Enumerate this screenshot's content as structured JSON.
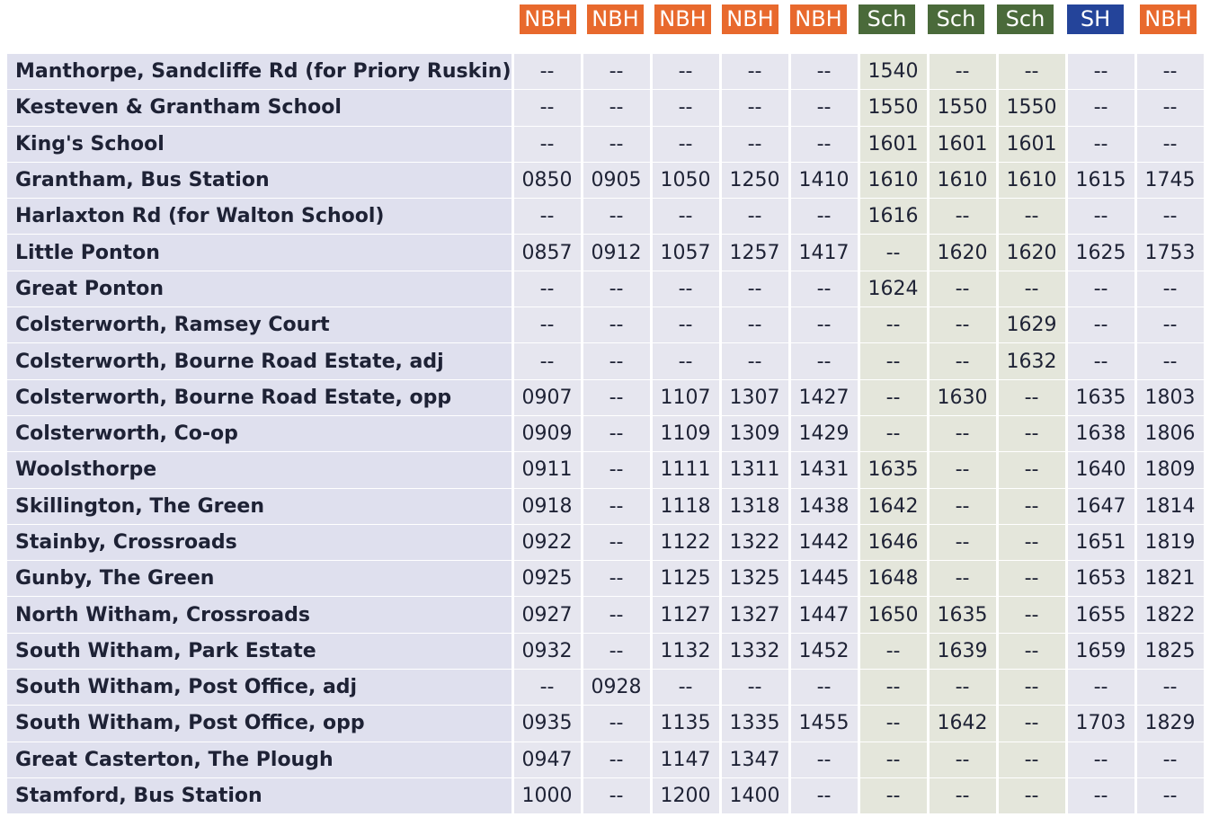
{
  "columns": [
    {
      "label": "NBH",
      "color": "#e8692d"
    },
    {
      "label": "NBH",
      "color": "#e8692d"
    },
    {
      "label": "NBH",
      "color": "#e8692d"
    },
    {
      "label": "NBH",
      "color": "#e8692d"
    },
    {
      "label": "NBH",
      "color": "#e8692d"
    },
    {
      "label": "Sch",
      "color": "#4a6a3a"
    },
    {
      "label": "Sch",
      "color": "#4a6a3a"
    },
    {
      "label": "Sch",
      "color": "#4a6a3a"
    },
    {
      "label": "SH",
      "color": "#24449a"
    },
    {
      "label": "NBH",
      "color": "#e8692d"
    }
  ],
  "rows": [
    {
      "stop": "Manthorpe, Sandcliffe Rd (for Priory Ruskin)",
      "times": [
        "--",
        "--",
        "--",
        "--",
        "--",
        "1540",
        "--",
        "--",
        "--",
        "--"
      ]
    },
    {
      "stop": "Kesteven & Grantham School",
      "times": [
        "--",
        "--",
        "--",
        "--",
        "--",
        "1550",
        "1550",
        "1550",
        "--",
        "--"
      ]
    },
    {
      "stop": "King's School",
      "times": [
        "--",
        "--",
        "--",
        "--",
        "--",
        "1601",
        "1601",
        "1601",
        "--",
        "--"
      ]
    },
    {
      "stop": "Grantham, Bus Station",
      "times": [
        "0850",
        "0905",
        "1050",
        "1250",
        "1410",
        "1610",
        "1610",
        "1610",
        "1615",
        "1745"
      ]
    },
    {
      "stop": "Harlaxton Rd (for Walton School)",
      "times": [
        "--",
        "--",
        "--",
        "--",
        "--",
        "1616",
        "--",
        "--",
        "--",
        "--"
      ]
    },
    {
      "stop": "Little Ponton",
      "times": [
        "0857",
        "0912",
        "1057",
        "1257",
        "1417",
        "--",
        "1620",
        "1620",
        "1625",
        "1753"
      ]
    },
    {
      "stop": "Great Ponton",
      "times": [
        "--",
        "--",
        "--",
        "--",
        "--",
        "1624",
        "--",
        "--",
        "--",
        "--"
      ]
    },
    {
      "stop": "Colsterworth, Ramsey Court",
      "times": [
        "--",
        "--",
        "--",
        "--",
        "--",
        "--",
        "--",
        "1629",
        "--",
        "--"
      ]
    },
    {
      "stop": "Colsterworth, Bourne Road Estate, adj",
      "times": [
        "--",
        "--",
        "--",
        "--",
        "--",
        "--",
        "--",
        "1632",
        "--",
        "--"
      ]
    },
    {
      "stop": "Colsterworth, Bourne Road Estate, opp",
      "times": [
        "0907",
        "--",
        "1107",
        "1307",
        "1427",
        "--",
        "1630",
        "--",
        "1635",
        "1803"
      ]
    },
    {
      "stop": "Colsterworth, Co-op",
      "times": [
        "0909",
        "--",
        "1109",
        "1309",
        "1429",
        "--",
        "--",
        "--",
        "1638",
        "1806"
      ]
    },
    {
      "stop": "Woolsthorpe",
      "times": [
        "0911",
        "--",
        "1111",
        "1311",
        "1431",
        "1635",
        "--",
        "--",
        "1640",
        "1809"
      ]
    },
    {
      "stop": "Skillington, The Green",
      "times": [
        "0918",
        "--",
        "1118",
        "1318",
        "1438",
        "1642",
        "--",
        "--",
        "1647",
        "1814"
      ]
    },
    {
      "stop": "Stainby, Crossroads",
      "times": [
        "0922",
        "--",
        "1122",
        "1322",
        "1442",
        "1646",
        "--",
        "--",
        "1651",
        "1819"
      ]
    },
    {
      "stop": "Gunby, The Green",
      "times": [
        "0925",
        "--",
        "1125",
        "1325",
        "1445",
        "1648",
        "--",
        "--",
        "1653",
        "1821"
      ]
    },
    {
      "stop": "North Witham, Crossroads",
      "times": [
        "0927",
        "--",
        "1127",
        "1327",
        "1447",
        "1650",
        "1635",
        "--",
        "1655",
        "1822"
      ]
    },
    {
      "stop": "South Witham, Park Estate",
      "times": [
        "0932",
        "--",
        "1132",
        "1332",
        "1452",
        "--",
        "1639",
        "--",
        "1659",
        "1825"
      ]
    },
    {
      "stop": "South Witham, Post Office, adj",
      "times": [
        "--",
        "0928",
        "--",
        "--",
        "--",
        "--",
        "--",
        "--",
        "--",
        "--"
      ]
    },
    {
      "stop": "South Witham, Post Office, opp",
      "times": [
        "0935",
        "--",
        "1135",
        "1335",
        "1455",
        "--",
        "1642",
        "--",
        "1703",
        "1829"
      ]
    },
    {
      "stop": "Great Casterton, The Plough",
      "times": [
        "0947",
        "--",
        "1147",
        "1347",
        "--",
        "--",
        "--",
        "--",
        "--",
        "--"
      ]
    },
    {
      "stop": "Stamford, Bus Station",
      "times": [
        "1000",
        "--",
        "1200",
        "1400",
        "--",
        "--",
        "--",
        "--",
        "--",
        "--"
      ]
    }
  ]
}
